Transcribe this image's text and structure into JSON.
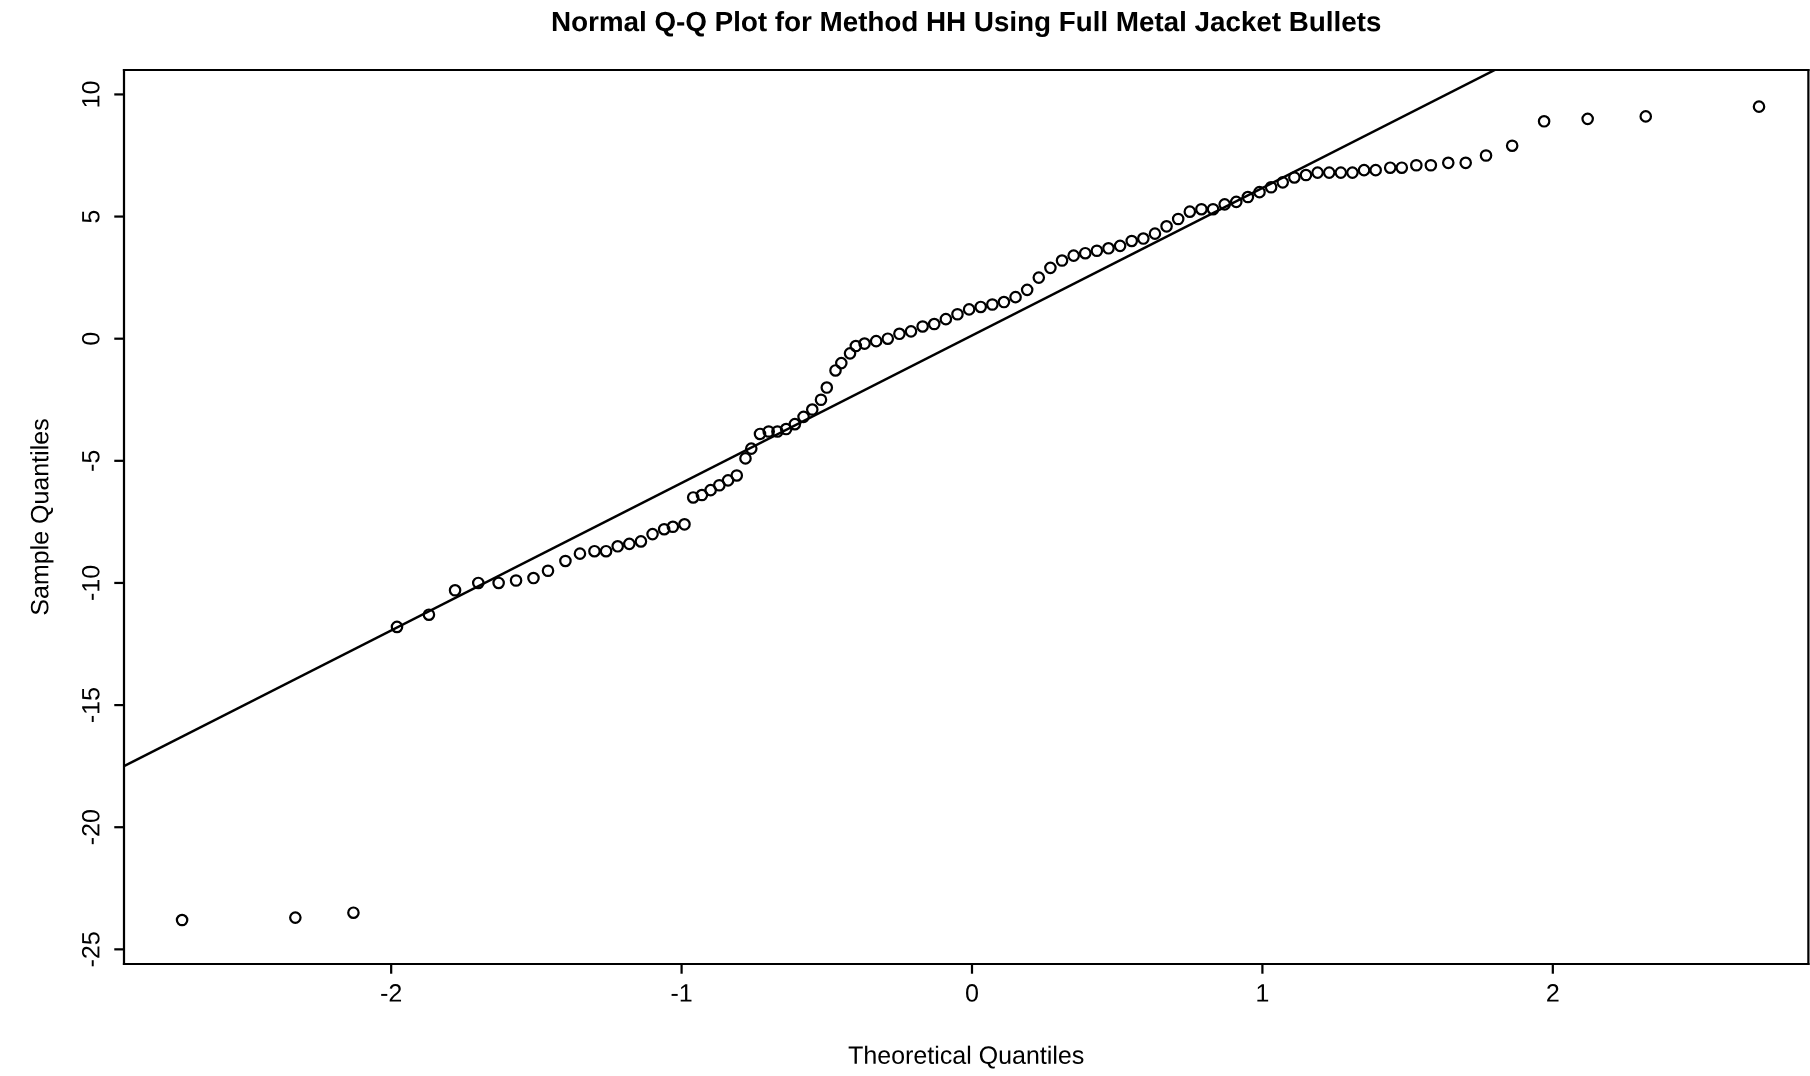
{
  "chart_data": {
    "type": "scatter",
    "title": "Normal Q-Q Plot for Method HH Using Full Metal Jacket Bullets",
    "xlabel": "Theoretical Quantiles",
    "ylabel": "Sample Quantiles",
    "grid": false,
    "xlim": [
      -2.92,
      2.88
    ],
    "ylim": [
      -25.6,
      11.0
    ],
    "xticks": [
      -2,
      -1,
      0,
      1,
      2
    ],
    "yticks": [
      -25,
      -20,
      -15,
      -10,
      -5,
      0,
      5,
      10
    ],
    "series": [
      {
        "marker": "circle",
        "color": "#000000",
        "x": [
          -2.72,
          -2.33,
          -2.13,
          -1.98,
          -1.87,
          -1.78,
          -1.7,
          -1.63,
          -1.57,
          -1.51,
          -1.46,
          -1.4,
          -1.35,
          -1.3,
          -1.26,
          -1.22,
          -1.18,
          -1.14,
          -1.1,
          -1.06,
          -1.03,
          -0.99,
          -0.96,
          -0.93,
          -0.9,
          -0.87,
          -0.84,
          -0.81,
          -0.78,
          -0.76,
          -0.73,
          -0.7,
          -0.67,
          -0.64,
          -0.61,
          -0.58,
          -0.55,
          -0.52,
          -0.5,
          -0.47,
          -0.45,
          -0.42,
          -0.4,
          -0.37,
          -0.33,
          -0.29,
          -0.25,
          -0.21,
          -0.17,
          -0.13,
          -0.09,
          -0.05,
          -0.01,
          0.03,
          0.07,
          0.11,
          0.15,
          0.19,
          0.23,
          0.27,
          0.31,
          0.35,
          0.39,
          0.43,
          0.47,
          0.51,
          0.55,
          0.59,
          0.63,
          0.67,
          0.71,
          0.75,
          0.79,
          0.83,
          0.87,
          0.91,
          0.95,
          0.99,
          1.03,
          1.07,
          1.11,
          1.15,
          1.19,
          1.23,
          1.27,
          1.31,
          1.35,
          1.39,
          1.44,
          1.48,
          1.53,
          1.58,
          1.64,
          1.7,
          1.77,
          1.86,
          1.97,
          2.12,
          2.32,
          2.71
        ],
        "values": [
          -23.8,
          -23.7,
          -23.5,
          -11.8,
          -11.3,
          -10.3,
          -10.0,
          -10.0,
          -9.9,
          -9.8,
          -9.5,
          -9.1,
          -8.8,
          -8.7,
          -8.7,
          -8.5,
          -8.4,
          -8.3,
          -8.0,
          -7.8,
          -7.7,
          -7.6,
          -6.5,
          -6.4,
          -6.2,
          -6.0,
          -5.8,
          -5.6,
          -4.9,
          -4.5,
          -3.9,
          -3.8,
          -3.8,
          -3.7,
          -3.5,
          -3.2,
          -2.9,
          -2.5,
          -2.0,
          -1.3,
          -1.0,
          -0.6,
          -0.3,
          -0.2,
          -0.1,
          0.0,
          0.2,
          0.3,
          0.5,
          0.6,
          0.8,
          1.0,
          1.2,
          1.3,
          1.4,
          1.5,
          1.7,
          2.0,
          2.5,
          2.9,
          3.2,
          3.4,
          3.5,
          3.6,
          3.7,
          3.8,
          4.0,
          4.1,
          4.3,
          4.6,
          4.9,
          5.2,
          5.3,
          5.3,
          5.5,
          5.6,
          5.8,
          6.0,
          6.2,
          6.4,
          6.6,
          6.7,
          6.8,
          6.8,
          6.8,
          6.8,
          6.9,
          6.9,
          7.0,
          7.0,
          7.1,
          7.1,
          7.2,
          7.2,
          7.5,
          7.9,
          8.9,
          9.0,
          9.1,
          9.5
        ]
      },
      {
        "type": "line",
        "marker": "none",
        "color": "#000000",
        "x": [
          -2.92,
          1.8
        ],
        "values": [
          -17.5,
          11.0
        ]
      }
    ]
  }
}
